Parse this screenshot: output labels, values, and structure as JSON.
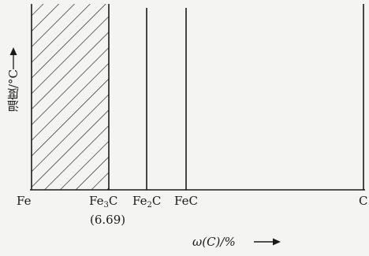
{
  "diagram": {
    "y_axis_label": "温度/°C",
    "x_axis_label": "ω(C)/%",
    "x_labels": {
      "fe": "Fe",
      "fe3c_main": "Fe",
      "fe3c_sub": "3",
      "fe3c_end": "C",
      "fe3c_value": "(6.69)",
      "fe2c_main": "Fe",
      "fe2c_sub": "2",
      "fe2c_end": "C",
      "fec": "FeC",
      "c": "C"
    },
    "colors": {
      "line": "#1a1a1a",
      "background": "#f4f4f2",
      "hatch": "#1a1a1a"
    }
  }
}
